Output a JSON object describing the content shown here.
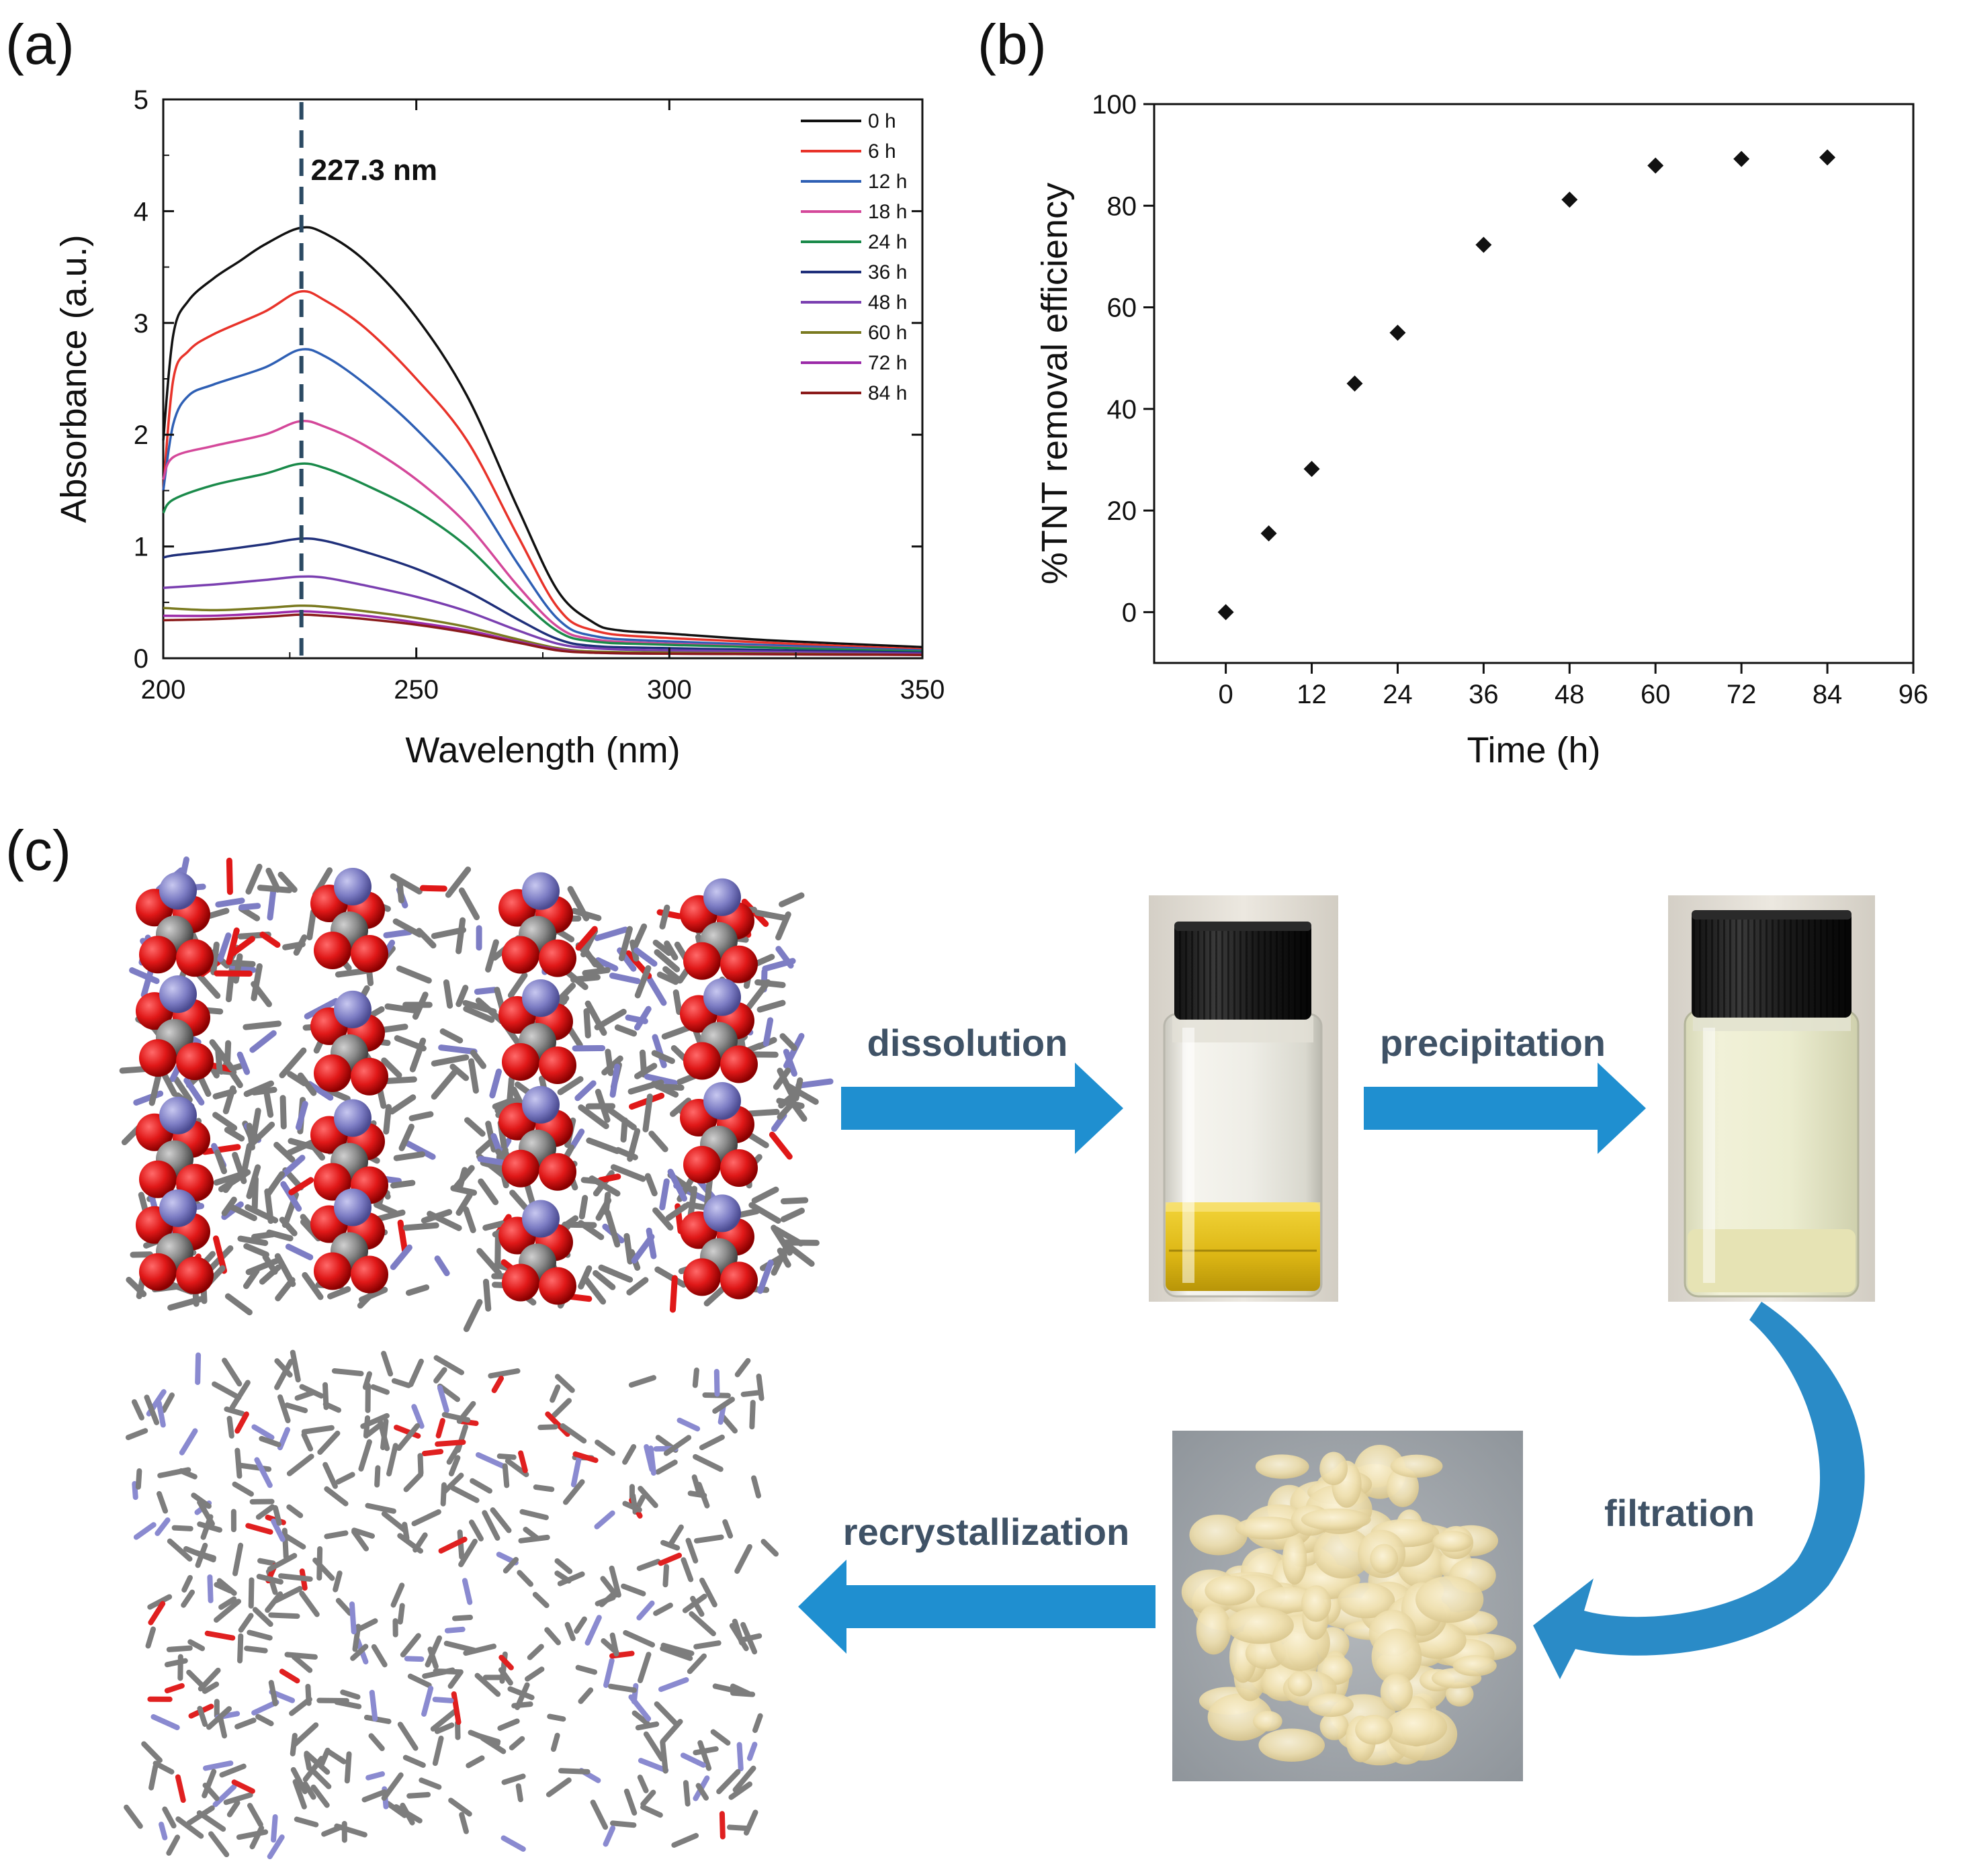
{
  "panels": {
    "a": "(a)",
    "b": "(b)",
    "c": "(c)"
  },
  "chart_data": [
    {
      "type": "line",
      "panel": "(a)",
      "xlabel": "Wavelength (nm)",
      "ylabel": "Absorbance (a.u.)",
      "xlim": [
        200,
        350
      ],
      "ylim": [
        0,
        5
      ],
      "xticks": [
        200,
        250,
        300,
        350
      ],
      "yticks": [
        0,
        1,
        2,
        3,
        4,
        5
      ],
      "annotation": {
        "text": "227.3 nm",
        "x": 227.3
      },
      "legend_position": "top-right",
      "series": [
        {
          "name": "0 h",
          "color": "#111111",
          "points": [
            [
              200,
              1.95
            ],
            [
              202,
              2.9
            ],
            [
              205,
              3.2
            ],
            [
              210,
              3.4
            ],
            [
              215,
              3.55
            ],
            [
              220,
              3.7
            ],
            [
              227,
              3.85
            ],
            [
              232,
              3.8
            ],
            [
              240,
              3.55
            ],
            [
              250,
              3.05
            ],
            [
              260,
              2.35
            ],
            [
              270,
              1.35
            ],
            [
              278,
              0.6
            ],
            [
              285,
              0.32
            ],
            [
              290,
              0.25
            ],
            [
              300,
              0.22
            ],
            [
              320,
              0.16
            ],
            [
              350,
              0.1
            ]
          ]
        },
        {
          "name": "6 h",
          "color": "#e8332a",
          "points": [
            [
              200,
              1.5
            ],
            [
              202,
              2.5
            ],
            [
              205,
              2.75
            ],
            [
              210,
              2.9
            ],
            [
              220,
              3.1
            ],
            [
              227,
              3.28
            ],
            [
              232,
              3.2
            ],
            [
              240,
              2.95
            ],
            [
              250,
              2.5
            ],
            [
              260,
              1.95
            ],
            [
              270,
              1.1
            ],
            [
              278,
              0.45
            ],
            [
              285,
              0.25
            ],
            [
              300,
              0.18
            ],
            [
              350,
              0.08
            ]
          ]
        },
        {
          "name": "12 h",
          "color": "#2e5fb4",
          "points": [
            [
              200,
              1.5
            ],
            [
              202,
              2.1
            ],
            [
              205,
              2.35
            ],
            [
              210,
              2.45
            ],
            [
              220,
              2.6
            ],
            [
              227,
              2.76
            ],
            [
              232,
              2.7
            ],
            [
              240,
              2.45
            ],
            [
              250,
              2.05
            ],
            [
              260,
              1.55
            ],
            [
              270,
              0.85
            ],
            [
              278,
              0.35
            ],
            [
              285,
              0.2
            ],
            [
              300,
              0.15
            ],
            [
              350,
              0.07
            ]
          ]
        },
        {
          "name": "18 h",
          "color": "#d4489a",
          "points": [
            [
              200,
              1.6
            ],
            [
              202,
              1.8
            ],
            [
              210,
              1.9
            ],
            [
              220,
              2.0
            ],
            [
              227,
              2.12
            ],
            [
              232,
              2.07
            ],
            [
              240,
              1.9
            ],
            [
              250,
              1.6
            ],
            [
              260,
              1.2
            ],
            [
              270,
              0.65
            ],
            [
              278,
              0.28
            ],
            [
              285,
              0.17
            ],
            [
              300,
              0.13
            ],
            [
              350,
              0.06
            ]
          ]
        },
        {
          "name": "24 h",
          "color": "#1a8a4a",
          "points": [
            [
              200,
              1.3
            ],
            [
              202,
              1.42
            ],
            [
              210,
              1.55
            ],
            [
              220,
              1.65
            ],
            [
              227,
              1.74
            ],
            [
              232,
              1.7
            ],
            [
              240,
              1.55
            ],
            [
              250,
              1.32
            ],
            [
              260,
              1.0
            ],
            [
              270,
              0.55
            ],
            [
              278,
              0.24
            ],
            [
              285,
              0.15
            ],
            [
              300,
              0.12
            ],
            [
              350,
              0.06
            ]
          ]
        },
        {
          "name": "36 h",
          "color": "#1f2f7a",
          "points": [
            [
              200,
              0.9
            ],
            [
              202,
              0.92
            ],
            [
              210,
              0.96
            ],
            [
              220,
              1.02
            ],
            [
              227,
              1.07
            ],
            [
              232,
              1.05
            ],
            [
              240,
              0.95
            ],
            [
              250,
              0.8
            ],
            [
              260,
              0.6
            ],
            [
              270,
              0.35
            ],
            [
              278,
              0.17
            ],
            [
              285,
              0.11
            ],
            [
              300,
              0.09
            ],
            [
              350,
              0.05
            ]
          ]
        },
        {
          "name": "48 h",
          "color": "#7a3fb0",
          "points": [
            [
              200,
              0.63
            ],
            [
              210,
              0.66
            ],
            [
              220,
              0.7
            ],
            [
              227,
              0.73
            ],
            [
              232,
              0.72
            ],
            [
              240,
              0.65
            ],
            [
              250,
              0.55
            ],
            [
              260,
              0.42
            ],
            [
              270,
              0.25
            ],
            [
              278,
              0.13
            ],
            [
              285,
              0.09
            ],
            [
              300,
              0.07
            ],
            [
              350,
              0.04
            ]
          ]
        },
        {
          "name": "60 h",
          "color": "#7a7a20",
          "points": [
            [
              200,
              0.45
            ],
            [
              210,
              0.43
            ],
            [
              220,
              0.45
            ],
            [
              227,
              0.47
            ],
            [
              232,
              0.46
            ],
            [
              240,
              0.42
            ],
            [
              250,
              0.36
            ],
            [
              260,
              0.28
            ],
            [
              270,
              0.17
            ],
            [
              278,
              0.09
            ],
            [
              285,
              0.06
            ],
            [
              300,
              0.05
            ],
            [
              350,
              0.03
            ]
          ]
        },
        {
          "name": "72 h",
          "color": "#9b2aa8",
          "points": [
            [
              200,
              0.38
            ],
            [
              210,
              0.38
            ],
            [
              220,
              0.4
            ],
            [
              227,
              0.42
            ],
            [
              232,
              0.41
            ],
            [
              240,
              0.38
            ],
            [
              250,
              0.32
            ],
            [
              260,
              0.25
            ],
            [
              270,
              0.15
            ],
            [
              278,
              0.08
            ],
            [
              285,
              0.05
            ],
            [
              300,
              0.04
            ],
            [
              350,
              0.03
            ]
          ]
        },
        {
          "name": "84 h",
          "color": "#8b1a1a",
          "points": [
            [
              200,
              0.34
            ],
            [
              210,
              0.35
            ],
            [
              220,
              0.37
            ],
            [
              227,
              0.39
            ],
            [
              232,
              0.38
            ],
            [
              240,
              0.35
            ],
            [
              250,
              0.3
            ],
            [
              260,
              0.23
            ],
            [
              270,
              0.14
            ],
            [
              278,
              0.07
            ],
            [
              285,
              0.05
            ],
            [
              300,
              0.04
            ],
            [
              350,
              0.03
            ]
          ]
        }
      ]
    },
    {
      "type": "scatter",
      "panel": "(b)",
      "xlabel": "Time (h)",
      "ylabel": "%TNT removal efficiency",
      "xlim": [
        -10,
        96
      ],
      "ylim": [
        -10,
        100
      ],
      "xticks": [
        0,
        12,
        24,
        36,
        48,
        60,
        72,
        84,
        96
      ],
      "yticks": [
        0,
        20,
        40,
        60,
        80,
        100
      ],
      "marker": "diamond",
      "x": [
        0,
        6,
        12,
        18,
        24,
        36,
        48,
        60,
        72,
        84
      ],
      "y": [
        0,
        15.5,
        28.2,
        45,
        55,
        72.3,
        81.2,
        87.9,
        89.2,
        89.5
      ]
    }
  ],
  "scheme": {
    "dissolution": "dissolution",
    "precipitation": "precipitation",
    "filtration": "filtration",
    "recrystallization": "recrystallization",
    "arrow_color": "#1f8fd0"
  }
}
